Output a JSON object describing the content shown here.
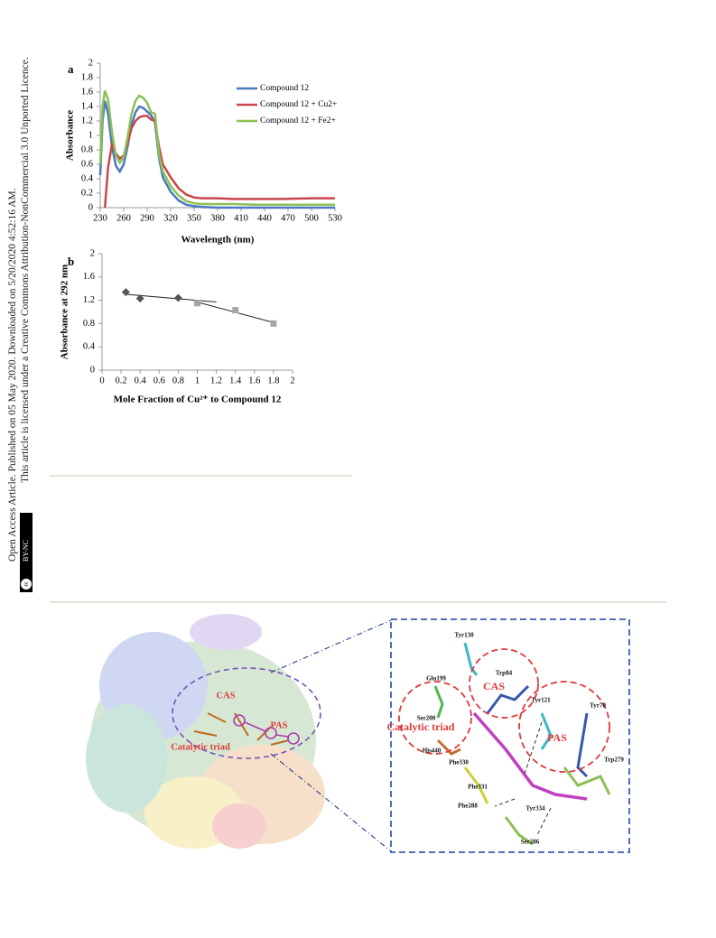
{
  "sidebar": {
    "line1": "Open Access Article. Published on 05 May 2020. Downloaded on 5/20/2020 4:52:16 AM.",
    "line2": "This article is licensed under a Creative Commons Attribution-NonCommercial 3.0 Unported Licence.",
    "badge": "BY-NC"
  },
  "chart_data": [
    {
      "type": "line",
      "panel": "a",
      "xlabel": "Wavelength (nm)",
      "ylabel": "Absorbance",
      "x": [
        230,
        233,
        236,
        240,
        245,
        250,
        255,
        260,
        265,
        270,
        275,
        280,
        285,
        290,
        295,
        300,
        305,
        310,
        320,
        330,
        340,
        350,
        360,
        380,
        400,
        430,
        460,
        500,
        530
      ],
      "xlim": [
        230,
        530
      ],
      "xticks": [
        230,
        260,
        290,
        320,
        350,
        380,
        410,
        440,
        470,
        500,
        530
      ],
      "ylim": [
        0,
        2
      ],
      "yticks": [
        0,
        0.2,
        0.4,
        0.6,
        0.8,
        1,
        1.2,
        1.4,
        1.6,
        1.8,
        2
      ],
      "legend": "upper right",
      "series": [
        {
          "name": "Compound 12",
          "color": "#4a78c2",
          "values": [
            0.45,
            1.2,
            1.48,
            1.3,
            0.85,
            0.58,
            0.5,
            0.6,
            0.85,
            1.15,
            1.32,
            1.4,
            1.38,
            1.33,
            1.28,
            1.18,
            0.7,
            0.42,
            0.22,
            0.1,
            0.04,
            0.02,
            0.01,
            0,
            0,
            0,
            0,
            0,
            0
          ]
        },
        {
          "name": "Compound 12 + Cu2+",
          "color": "#c9464a",
          "values": [
            null,
            null,
            0,
            0.55,
            0.88,
            0.75,
            0.68,
            0.72,
            0.9,
            1.1,
            1.2,
            1.25,
            1.27,
            1.27,
            1.22,
            1.2,
            0.85,
            0.6,
            0.42,
            0.27,
            0.18,
            0.14,
            0.13,
            0.13,
            0.12,
            0.12,
            0.12,
            0.13,
            0.13
          ]
        },
        {
          "name": "Compound 12 + Fe2+",
          "color": "#8cc152",
          "values": [
            0.6,
            1.4,
            1.62,
            1.5,
            1.05,
            0.72,
            0.62,
            0.7,
            0.98,
            1.3,
            1.48,
            1.55,
            1.52,
            1.45,
            1.32,
            1.3,
            0.75,
            0.5,
            0.3,
            0.17,
            0.09,
            0.06,
            0.05,
            0.05,
            0.05,
            0.04,
            0.04,
            0.04,
            0.04
          ]
        }
      ]
    },
    {
      "type": "scatter",
      "panel": "b",
      "xlabel": "Mole Fraction of Cu²⁺ to Compound 12",
      "ylabel": "Absorbance at 292 nm",
      "xlim": [
        0,
        2
      ],
      "xticks": [
        0,
        0.2,
        0.4,
        0.6,
        0.8,
        1,
        1.2,
        1.4,
        1.6,
        1.8,
        2
      ],
      "ylim": [
        0,
        2
      ],
      "yticks": [
        0,
        0.4,
        0.8,
        1.2,
        1.6,
        2
      ],
      "trendline": true,
      "series": [
        {
          "color": "#555555",
          "marker": "diamond",
          "x": [
            0.25,
            0.4,
            0.8
          ],
          "values": [
            1.34,
            1.23,
            1.24
          ]
        },
        {
          "color": "#a6a6a6",
          "marker": "square",
          "x": [
            1,
            1.4,
            1.8
          ],
          "values": [
            1.15,
            1.03,
            0.8
          ]
        }
      ]
    }
  ],
  "figure": {
    "left_labels": [
      "CAS",
      "PAS",
      "Catalytic triad"
    ],
    "right_labels": [
      "Tyr130",
      "Trp84",
      "Glu199",
      "CAS",
      "Ser200",
      "Catalytic triad",
      "His440",
      "Tyr121",
      "Tyr70",
      "PAS",
      "Phe330",
      "Trp279",
      "Phe331",
      "Phe288",
      "Tyr334",
      "Ser286"
    ]
  }
}
